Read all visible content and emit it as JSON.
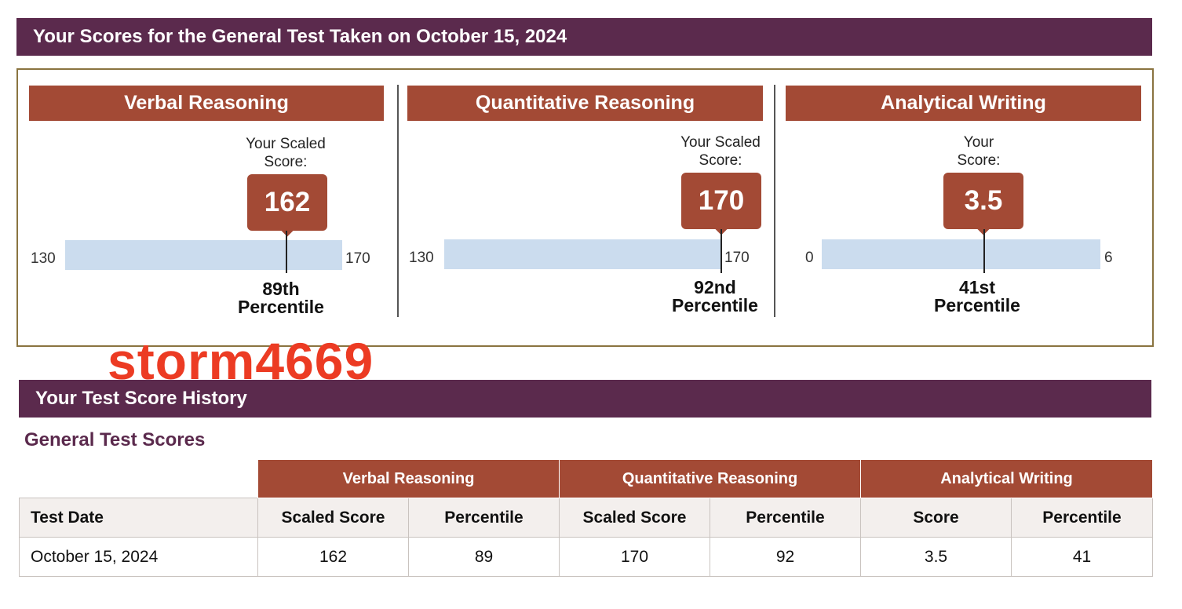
{
  "banner": {
    "title": "Your Scores for the General Test Taken on October 15, 2024"
  },
  "sections": {
    "verbal": {
      "title": "Verbal Reasoning",
      "scaled_label": "Your Scaled\nScore:",
      "score": "162",
      "min": "130",
      "max": "170",
      "score_value": 162,
      "scale_min": 130,
      "scale_max": 170,
      "percentile_rank": "89th",
      "percentile_word": "Percentile"
    },
    "quant": {
      "title": "Quantitative Reasoning",
      "scaled_label": "Your Scaled\nScore:",
      "score": "170",
      "min": "130",
      "max": "170",
      "score_value": 170,
      "scale_min": 130,
      "scale_max": 170,
      "percentile_rank": "92nd",
      "percentile_word": "Percentile"
    },
    "writing": {
      "title": "Analytical Writing",
      "scaled_label": "Your\nScore:",
      "score": "3.5",
      "min": "0",
      "max": "6",
      "score_value": 3.5,
      "scale_min": 0,
      "scale_max": 6,
      "percentile_rank": "41st",
      "percentile_word": "Percentile"
    }
  },
  "watermark": "storm4669",
  "history": {
    "banner": "Your Test Score History",
    "section_title": "General Test Scores",
    "group_headers": [
      "Verbal Reasoning",
      "Quantitative Reasoning",
      "Analytical Writing"
    ],
    "sub_headers": [
      "Test Date",
      "Scaled Score",
      "Percentile",
      "Scaled Score",
      "Percentile",
      "Score",
      "Percentile"
    ],
    "rows": [
      [
        "October 15, 2024",
        "162",
        "89",
        "170",
        "92",
        "3.5",
        "41"
      ]
    ]
  },
  "colors": {
    "banner": "#5b2a4d",
    "section_header": "#a34a35",
    "track": "#cbdcee",
    "frame_border": "#8a7440",
    "watermark": "#ec3b23"
  }
}
